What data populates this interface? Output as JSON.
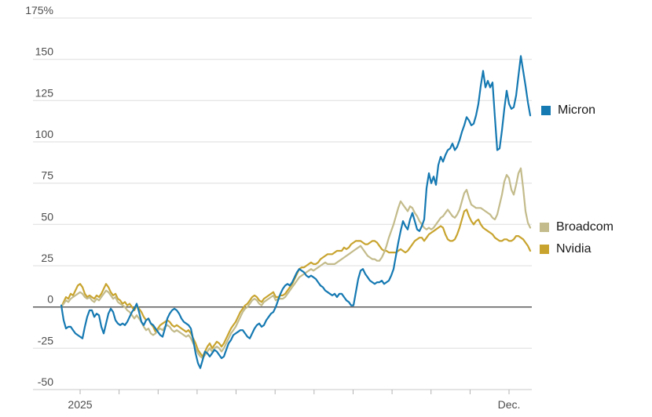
{
  "chart_data": {
    "type": "line",
    "title": "",
    "unit": "%",
    "ylim": [
      -50,
      175
    ],
    "grid": true,
    "legend_position": "right",
    "y_ticks": [
      175,
      150,
      125,
      100,
      75,
      50,
      25,
      0,
      -25,
      -50
    ],
    "y_tick_labels": [
      "175%",
      "150",
      "125",
      "100",
      "75",
      "50",
      "25",
      "0",
      "-25",
      "-50"
    ],
    "x_ticks": [
      "2025",
      "",
      "",
      "",
      "",
      "",
      "",
      "",
      "",
      "",
      "",
      "Dec."
    ],
    "x_range": "Jan 2025 - Dec 2025",
    "series": [
      {
        "name": "Micron",
        "color": "#1579b2",
        "values": [
          1,
          -8,
          -13,
          -12,
          -12,
          -14,
          -16,
          -17,
          -18,
          -19,
          -12,
          -6,
          -2,
          -2,
          -6,
          -4,
          -5,
          -12,
          -16,
          -10,
          -4,
          -1,
          -3,
          -8,
          -10,
          -11,
          -10,
          -11,
          -9,
          -6,
          -3,
          -1,
          2,
          -3,
          -9,
          -11,
          -8,
          -7,
          -10,
          -11,
          -13,
          -15,
          -17,
          -18,
          -13,
          -7,
          -4,
          -2,
          -1,
          -2,
          -4,
          -7,
          -9,
          -10,
          -11,
          -13,
          -20,
          -28,
          -34,
          -37,
          -32,
          -27,
          -28,
          -30,
          -28,
          -26,
          -27,
          -29,
          -31,
          -30,
          -26,
          -22,
          -20,
          -17,
          -16,
          -15,
          -14,
          -14,
          -16,
          -18,
          -19,
          -16,
          -13,
          -11,
          -10,
          -12,
          -11,
          -8,
          -6,
          -4,
          -3,
          0,
          4,
          8,
          11,
          13,
          14,
          13,
          15,
          18,
          21,
          23,
          22,
          21,
          19,
          18,
          19,
          18,
          17,
          15,
          13,
          12,
          10,
          9,
          8,
          7,
          8,
          6,
          8,
          8,
          6,
          4,
          3,
          1,
          1,
          9,
          17,
          22,
          23,
          20,
          18,
          16,
          15,
          14,
          15,
          15,
          16,
          14,
          15,
          16,
          19,
          23,
          31,
          39,
          46,
          52,
          49,
          47,
          53,
          57,
          52,
          47,
          46,
          49,
          53,
          72,
          81,
          75,
          79,
          74,
          86,
          91,
          88,
          92,
          95,
          96,
          99,
          95,
          97,
          101,
          106,
          110,
          115,
          113,
          110,
          111,
          116,
          123,
          134,
          143,
          133,
          137,
          133,
          136,
          115,
          95,
          96,
          107,
          120,
          131,
          123,
          120,
          121,
          128,
          140,
          152,
          143,
          134,
          124,
          116
        ]
      },
      {
        "name": "Broadcom",
        "color": "#c3bb8b",
        "values": [
          0,
          2,
          4,
          3,
          5,
          6,
          7,
          8,
          9,
          8,
          6,
          5,
          6,
          4,
          3,
          5,
          4,
          6,
          8,
          10,
          9,
          7,
          5,
          6,
          3,
          2,
          1,
          0,
          -2,
          -3,
          -5,
          -7,
          -5,
          -7,
          -9,
          -12,
          -14,
          -13,
          -16,
          -17,
          -16,
          -14,
          -13,
          -14,
          -12,
          -11,
          -12,
          -14,
          -15,
          -14,
          -15,
          -16,
          -17,
          -18,
          -17,
          -19,
          -22,
          -25,
          -28,
          -30,
          -31,
          -29,
          -27,
          -25,
          -27,
          -25,
          -24,
          -25,
          -27,
          -25,
          -22,
          -19,
          -16,
          -14,
          -12,
          -9,
          -6,
          -3,
          -1,
          0,
          2,
          4,
          5,
          4,
          2,
          1,
          3,
          4,
          5,
          6,
          7,
          4,
          5,
          5,
          5,
          6,
          8,
          10,
          12,
          14,
          16,
          18,
          19,
          20,
          21,
          22,
          23,
          22,
          23,
          24,
          25,
          26,
          27,
          26,
          26,
          26,
          26,
          27,
          28,
          29,
          30,
          31,
          32,
          33,
          34,
          35,
          36,
          37,
          35,
          33,
          31,
          30,
          29,
          29,
          28,
          28,
          30,
          33,
          37,
          42,
          46,
          50,
          55,
          60,
          64,
          62,
          60,
          58,
          61,
          60,
          57,
          55,
          52,
          50,
          48,
          47,
          48,
          47,
          48,
          50,
          52,
          54,
          55,
          57,
          59,
          57,
          55,
          54,
          56,
          59,
          64,
          69,
          71,
          66,
          62,
          61,
          60,
          60,
          60,
          59,
          58,
          57,
          56,
          54,
          53,
          56,
          62,
          68,
          76,
          80,
          78,
          71,
          68,
          74,
          81,
          84,
          72,
          58,
          51,
          48
        ]
      },
      {
        "name": "Nvidia",
        "color": "#c8a42f",
        "values": [
          0,
          3,
          6,
          5,
          8,
          7,
          10,
          13,
          14,
          12,
          8,
          6,
          7,
          6,
          5,
          7,
          6,
          8,
          11,
          14,
          12,
          9,
          7,
          8,
          5,
          4,
          2,
          3,
          1,
          2,
          0,
          -2,
          1,
          -1,
          -3,
          -6,
          -8,
          -7,
          -10,
          -12,
          -15,
          -13,
          -11,
          -10,
          -9,
          -8,
          -9,
          -11,
          -12,
          -11,
          -12,
          -13,
          -14,
          -15,
          -14,
          -16,
          -19,
          -22,
          -26,
          -28,
          -30,
          -27,
          -24,
          -22,
          -25,
          -23,
          -21,
          -22,
          -24,
          -22,
          -19,
          -16,
          -13,
          -11,
          -9,
          -6,
          -3,
          -1,
          1,
          2,
          4,
          6,
          7,
          6,
          4,
          3,
          5,
          6,
          7,
          8,
          9,
          6,
          6,
          7,
          7,
          8,
          10,
          12,
          14,
          17,
          20,
          23,
          24,
          24,
          25,
          26,
          27,
          26,
          26,
          27,
          29,
          30,
          31,
          32,
          32,
          32,
          33,
          34,
          34,
          34,
          36,
          35,
          36,
          38,
          39,
          40,
          40,
          40,
          39,
          38,
          38,
          39,
          40,
          40,
          39,
          37,
          35,
          34,
          34,
          33,
          33,
          33,
          33,
          34,
          35,
          34,
          33,
          34,
          36,
          38,
          40,
          41,
          42,
          42,
          40,
          42,
          44,
          45,
          46,
          47,
          48,
          49,
          48,
          44,
          41,
          40,
          40,
          41,
          44,
          48,
          53,
          58,
          59,
          55,
          52,
          50,
          52,
          53,
          50,
          48,
          47,
          46,
          45,
          44,
          42,
          41,
          40,
          40,
          41,
          41,
          40,
          40,
          41,
          43,
          43,
          42,
          41,
          39,
          37,
          34
        ]
      }
    ]
  },
  "legend": {
    "items": [
      {
        "label": "Micron"
      },
      {
        "label": "Broadcom"
      },
      {
        "label": "Nvidia"
      }
    ]
  },
  "colors": {
    "grid_line": "#dedede",
    "zero_line": "#4d4d4d",
    "baseline": "#c9c9c9",
    "tick": "#b3b3b3",
    "axis_text": "#4d4d4d",
    "legend_text": "#1a1a1a"
  }
}
